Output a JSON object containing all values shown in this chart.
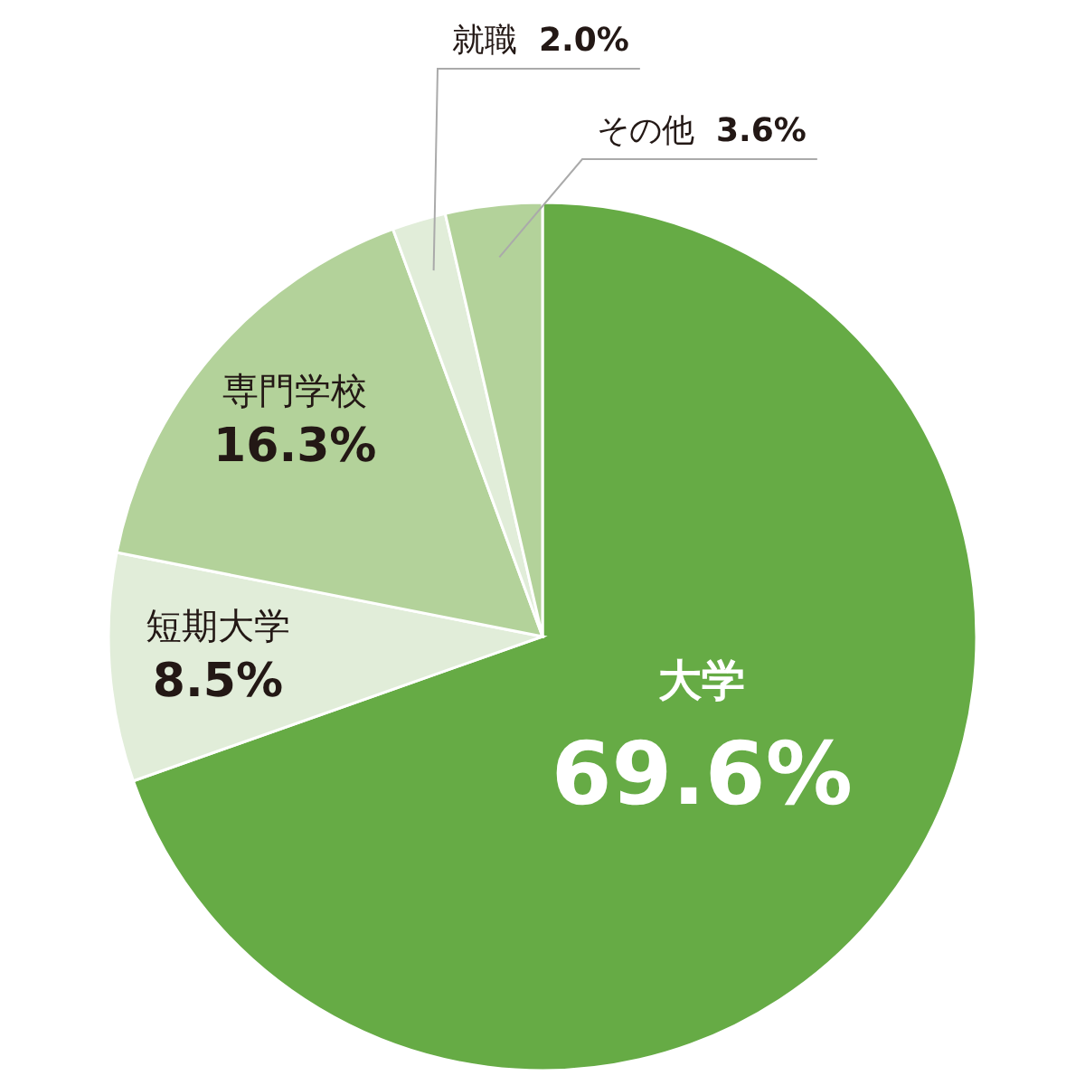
{
  "chart_data": {
    "type": "pie",
    "categories": [
      "大学",
      "短期大学",
      "専門学校",
      "就職",
      "その他"
    ],
    "values": [
      69.6,
      8.5,
      16.3,
      2.0,
      3.6
    ],
    "colors": [
      "#66ab45",
      "#e1edd9",
      "#b3d29a",
      "#e1edd9",
      "#b3d29a"
    ],
    "value_labels": [
      "69.6%",
      "8.5%",
      "16.3%",
      "2.0%",
      "3.6%"
    ]
  }
}
